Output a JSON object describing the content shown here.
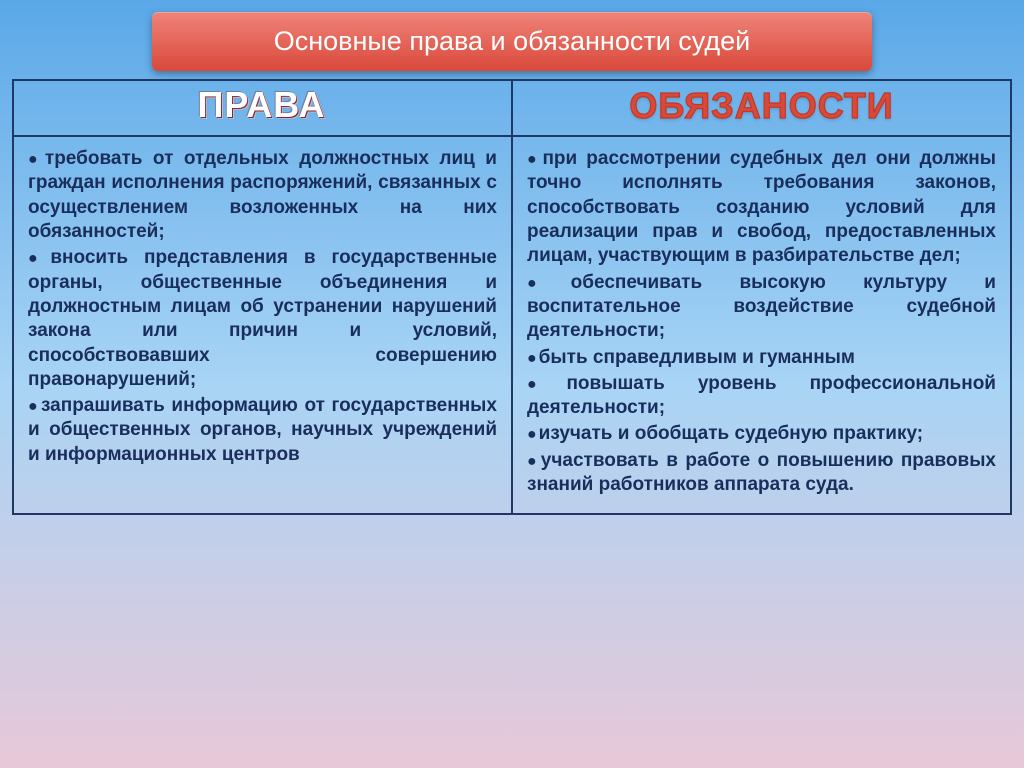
{
  "header": {
    "title": "Основные права и обязанности судей"
  },
  "columns": {
    "left_heading": "Права",
    "right_heading": "Обязаности"
  },
  "left_items": [
    "требовать от отдельных должностных лиц и граждан исполнения распоряжений, связанных с осуществлением возложенных на них обязанностей;",
    "вносить представления в государственные органы, общественные объединения и должностным лицам об устранении нарушений закона или причин и условий, способствовавших совершению правонарушений;",
    "запрашивать информацию от государственных и общественных органов, научных учреждений и информационных центров"
  ],
  "right_items": [
    "при рассмотрении судебных дел они должны точно исполнять требования законов, способствовать созданию условий для реализации прав и свобод, предоставленных лицам, участвующим в разбирательстве дел;",
    "обеспечивать высокую культуру и воспитательное воздействие судебной деятельности;",
    "быть справедливым и гуманным",
    "повышать уровень профессиональной деятельности;",
    "изучать и обобщать судебную практику;",
    "участвовать в работе о повышению правовых знаний работников аппарата суда."
  ],
  "style": {
    "slide_w": 1024,
    "slide_h": 768,
    "bg_gradient": [
      "#5aa8e8",
      "#a8d4f5",
      "#e8c8d8"
    ],
    "header_gradient": [
      "#f0847a",
      "#d9493a"
    ],
    "header_text_color": "#ffffff",
    "header_fontsize": 27,
    "table_border_color": "#203864",
    "col_heading_fontsize": 36,
    "left_heading_color_top": "#d63a4a",
    "left_heading_color_bottom": "#8a1a28",
    "right_heading_stroke": "#c23828",
    "right_heading_fill": "#d9493a",
    "body_text_color": "#1a2e5c",
    "body_fontsize": 19,
    "bullet_glyph": "●"
  }
}
